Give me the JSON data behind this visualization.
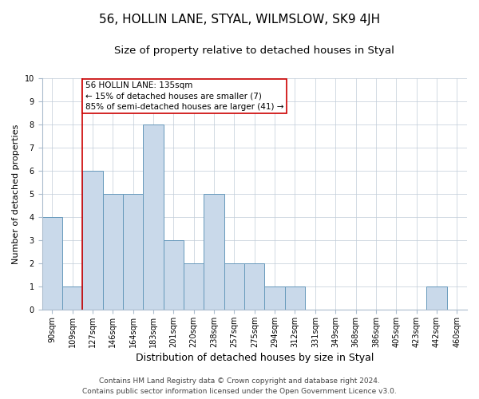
{
  "title": "56, HOLLIN LANE, STYAL, WILMSLOW, SK9 4JH",
  "subtitle": "Size of property relative to detached houses in Styal",
  "xlabel": "Distribution of detached houses by size in Styal",
  "ylabel": "Number of detached properties",
  "categories": [
    "90sqm",
    "109sqm",
    "127sqm",
    "146sqm",
    "164sqm",
    "183sqm",
    "201sqm",
    "220sqm",
    "238sqm",
    "257sqm",
    "275sqm",
    "294sqm",
    "312sqm",
    "331sqm",
    "349sqm",
    "368sqm",
    "386sqm",
    "405sqm",
    "423sqm",
    "442sqm",
    "460sqm"
  ],
  "values": [
    4,
    1,
    6,
    5,
    5,
    8,
    3,
    2,
    5,
    2,
    2,
    1,
    1,
    0,
    0,
    0,
    0,
    0,
    0,
    1,
    0
  ],
  "bar_color": "#c9d9ea",
  "bar_edge_color": "#6699bb",
  "highlight_line_color": "#cc0000",
  "highlight_index": 2,
  "annotation_text": "56 HOLLIN LANE: 135sqm\n← 15% of detached houses are smaller (7)\n85% of semi-detached houses are larger (41) →",
  "annotation_box_color": "#ffffff",
  "annotation_box_edge": "#cc0000",
  "ylim": [
    0,
    10
  ],
  "yticks": [
    0,
    1,
    2,
    3,
    4,
    5,
    6,
    7,
    8,
    9,
    10
  ],
  "background_color": "#ffffff",
  "grid_color": "#c0ccd8",
  "footer_line1": "Contains HM Land Registry data © Crown copyright and database right 2024.",
  "footer_line2": "Contains public sector information licensed under the Open Government Licence v3.0.",
  "title_fontsize": 11,
  "subtitle_fontsize": 9.5,
  "xlabel_fontsize": 9,
  "ylabel_fontsize": 8,
  "tick_fontsize": 7,
  "annotation_fontsize": 7.5,
  "footer_fontsize": 6.5
}
